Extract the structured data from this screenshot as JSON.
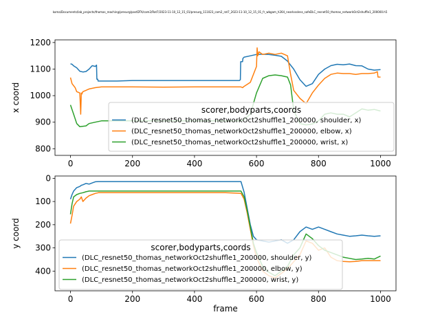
{
  "figure": {
    "title": "koma/Documents/lab_projects/thomas_reaching/presurg/postDTA/cam2/Rat7/2023-11-10_12_15_01/presurg_111023_cam2_rat7_2023-11-10_12_15_01_fr_wbgam_h264_nearlossless_safeDLC_resnet50_thomas_networkOct2shuffle1_200000.h5"
  },
  "chart_data": [
    {
      "type": "line",
      "xlabel": "",
      "ylabel": "x coord",
      "xlim": [
        -50,
        1050
      ],
      "ylim": [
        775,
        1210
      ],
      "y_inverted": false,
      "xticks": [
        0,
        200,
        400,
        600,
        800,
        1000
      ],
      "yticks": [
        800,
        900,
        1000,
        1100,
        1200
      ],
      "legend": {
        "title": "scorer,bodyparts,coords",
        "placement": "lower-right"
      },
      "series": [
        {
          "name": "(DLC_resnet50_thomas_networkOct2shuffle1_200000, shoulder, x)",
          "color": "#1f77b4",
          "x": [
            0,
            5,
            10,
            20,
            30,
            40,
            50,
            60,
            70,
            80,
            84,
            85,
            88,
            89,
            100,
            150,
            200,
            300,
            400,
            500,
            545,
            548,
            549,
            555,
            556,
            560,
            580,
            600,
            620,
            640,
            660,
            680,
            700,
            720,
            740,
            760,
            780,
            800,
            820,
            840,
            860,
            880,
            900,
            920,
            940,
            960,
            980,
            1000
          ],
          "y": [
            1120,
            1118,
            1112,
            1105,
            1092,
            1089,
            1091,
            1100,
            1113,
            1110,
            1115,
            1062,
            1062,
            1055,
            1055,
            1055,
            1057,
            1057,
            1057,
            1057,
            1057,
            1060,
            1128,
            1128,
            1140,
            1145,
            1150,
            1155,
            1156,
            1155,
            1152,
            1148,
            1130,
            1100,
            1060,
            1035,
            1045,
            1080,
            1100,
            1113,
            1118,
            1116,
            1119,
            1113,
            1112,
            1100,
            1096,
            1098
          ]
        },
        {
          "name": "(DLC_resnet50_thomas_networkOct2shuffle1_200000, elbow, x)",
          "color": "#ff7f0e",
          "x": [
            0,
            5,
            15,
            20,
            30,
            33,
            35,
            36,
            40,
            50,
            60,
            80,
            100,
            200,
            300,
            400,
            500,
            550,
            555,
            560,
            580,
            600,
            602,
            604,
            608,
            620,
            640,
            660,
            680,
            700,
            710,
            720,
            740,
            760,
            780,
            800,
            820,
            840,
            860,
            880,
            900,
            920,
            940,
            960,
            980,
            990,
            992,
            1000
          ],
          "y": [
            1068,
            1045,
            1030,
            1015,
            1010,
            930,
            1010,
            1005,
            1015,
            1020,
            1025,
            1030,
            1033,
            1033,
            1032,
            1033,
            1033,
            1033,
            1030,
            1035,
            1050,
            1110,
            1180,
            1150,
            1165,
            1155,
            1160,
            1155,
            1160,
            1150,
            1080,
            1020,
            990,
            970,
            1010,
            1040,
            1065,
            1080,
            1085,
            1083,
            1083,
            1080,
            1083,
            1083,
            1085,
            1090,
            1070,
            1070
          ]
        },
        {
          "name": "(DLC_resnet50_thomas_networkOct2shuffle1_200000, wrist, x)",
          "color": "#2ca02c",
          "x": [
            0,
            10,
            20,
            30,
            50,
            60,
            80,
            100,
            200,
            300,
            400,
            500,
            550,
            560,
            580,
            600,
            620,
            640,
            660,
            680,
            700,
            710,
            720,
            740,
            760,
            780,
            800,
            820,
            840,
            860,
            880,
            900,
            920,
            940,
            960,
            980,
            1000
          ],
          "y": [
            965,
            930,
            895,
            883,
            886,
            895,
            900,
            905,
            905,
            905,
            905,
            905,
            905,
            910,
            930,
            1010,
            1065,
            1075,
            1078,
            1075,
            1070,
            1040,
            945,
            895,
            890,
            893,
            905,
            930,
            935,
            930,
            930,
            920,
            935,
            950,
            945,
            948,
            942
          ]
        }
      ]
    },
    {
      "type": "line",
      "xlabel": "frame",
      "ylabel": "y coord",
      "xlim": [
        -50,
        1050
      ],
      "ylim": [
        485,
        -10
      ],
      "y_inverted": true,
      "xticks": [
        0,
        200,
        400,
        600,
        800,
        1000
      ],
      "yticks": [
        0,
        100,
        200,
        300,
        400
      ],
      "legend": {
        "title": "scorer,bodyparts,coords",
        "placement": "lower-left"
      },
      "series": [
        {
          "name": "(DLC_resnet50_thomas_networkOct2shuffle1_200000, shoulder, y)",
          "color": "#1f77b4",
          "x": [
            0,
            5,
            10,
            20,
            30,
            35,
            40,
            50,
            60,
            70,
            80,
            90,
            100,
            200,
            300,
            400,
            500,
            550,
            560,
            570,
            580,
            590,
            600,
            620,
            640,
            660,
            680,
            700,
            720,
            740,
            760,
            780,
            800,
            820,
            840,
            860,
            880,
            900,
            920,
            940,
            960,
            980,
            1000
          ],
          "y": [
            90,
            70,
            55,
            40,
            35,
            30,
            28,
            22,
            25,
            20,
            15,
            14,
            14,
            14,
            14,
            14,
            14,
            14,
            60,
            130,
            200,
            250,
            265,
            270,
            275,
            270,
            265,
            280,
            265,
            230,
            210,
            220,
            210,
            220,
            230,
            240,
            245,
            250,
            248,
            245,
            248,
            250,
            248
          ]
        },
        {
          "name": "(DLC_resnet50_thomas_networkOct2shuffle1_200000, elbow, y)",
          "color": "#ff7f0e",
          "x": [
            0,
            5,
            10,
            20,
            30,
            35,
            40,
            50,
            60,
            70,
            80,
            90,
            100,
            200,
            300,
            400,
            500,
            550,
            560,
            570,
            580,
            590,
            600,
            620,
            640,
            660,
            680,
            700,
            720,
            740,
            760,
            780,
            800,
            820,
            840,
            860,
            880,
            900,
            920,
            940,
            960,
            980,
            1000
          ],
          "y": [
            195,
            160,
            120,
            100,
            90,
            80,
            100,
            85,
            75,
            70,
            65,
            62,
            62,
            62,
            62,
            62,
            62,
            65,
            90,
            150,
            220,
            290,
            340,
            400,
            420,
            430,
            410,
            390,
            360,
            330,
            270,
            280,
            310,
            300,
            340,
            355,
            358,
            360,
            358,
            355,
            355,
            355,
            355
          ]
        },
        {
          "name": "(DLC_resnet50_thomas_networkOct2shuffle1_200000, wrist, y)",
          "color": "#2ca02c",
          "x": [
            0,
            5,
            10,
            20,
            30,
            40,
            50,
            60,
            70,
            80,
            90,
            100,
            200,
            300,
            400,
            500,
            550,
            560,
            570,
            580,
            590,
            600,
            620,
            640,
            660,
            680,
            700,
            720,
            740,
            760,
            780,
            800,
            820,
            840,
            860,
            880,
            900,
            920,
            940,
            960,
            980,
            1000
          ],
          "y": [
            155,
            110,
            80,
            70,
            65,
            62,
            58,
            55,
            55,
            55,
            55,
            55,
            55,
            55,
            55,
            55,
            55,
            80,
            140,
            210,
            280,
            320,
            380,
            405,
            420,
            400,
            380,
            330,
            300,
            240,
            260,
            290,
            310,
            320,
            330,
            340,
            345,
            350,
            348,
            345,
            348,
            335
          ]
        }
      ]
    }
  ]
}
